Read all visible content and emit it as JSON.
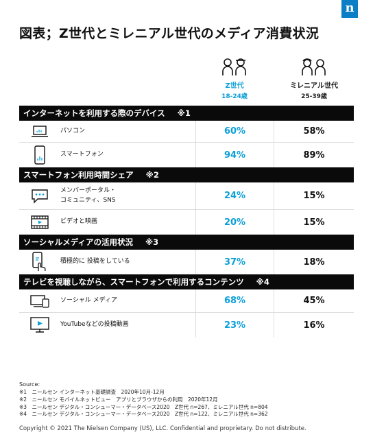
{
  "brand": {
    "logo_letter": "n",
    "logo_color": "#0a7fc6"
  },
  "title": "図表；Z世代とミレニアル世代のメディア消費状況",
  "columns": {
    "z": {
      "name": "Z世代",
      "ages": "18-24歳",
      "color": "#0a9fd8"
    },
    "millennial": {
      "name": "ミレニアル世代",
      "ages": "25-39歳",
      "color": "#1a1a1a"
    }
  },
  "sections": [
    {
      "title": "インターネットを利用する際のデバイス",
      "note": "※1",
      "rows": [
        {
          "icon": "laptop-icon",
          "label": "パソコン",
          "z": "60%",
          "m": "58%"
        },
        {
          "icon": "smartphone-icon",
          "label": "スマートフォン",
          "z": "94%",
          "m": "89%"
        }
      ]
    },
    {
      "title": "スマートフォン利用時間シェア",
      "note": "※2",
      "rows": [
        {
          "icon": "chat-bubble-icon",
          "label": "メンバーポータル・",
          "label2": "コミュニティ、SNS",
          "z": "24%",
          "m": "15%"
        },
        {
          "icon": "film-strip-icon",
          "label": "ビデオと映画",
          "z": "20%",
          "m": "15%"
        }
      ]
    },
    {
      "title": "ソーシャルメディアの活用状況",
      "note": "※3",
      "rows": [
        {
          "icon": "touch-phone-icon",
          "label": "積極的に 投稿をしている",
          "z": "37%",
          "m": "18%"
        }
      ]
    },
    {
      "title": "テレビを視聴しながら、スマートフォンで利用するコンテンツ",
      "note": "※4",
      "rows": [
        {
          "icon": "devices-icon",
          "label": "ソーシャル メディア",
          "z": "68%",
          "m": "45%"
        },
        {
          "icon": "tv-play-icon",
          "label": "YouTubeなどの投稿動画",
          "z": "23%",
          "m": "16%"
        }
      ]
    }
  ],
  "source": {
    "title": "Source:",
    "notes": [
      "※1　ニールセン インターネット基礎調査　2020年10月-12月",
      "※2　ニールセン モバイルネットビュー　アプリとブラウザからの利用　2020年12月",
      "※3　ニールセン デジタル・コンシューマー・データベース2020　Z世代 n=267、ミレニアル世代 n=804",
      "※4　ニールセン デジタル・コンシューマー・データベース2020　Z世代 n=122、ミレニアル世代 n=362"
    ]
  },
  "footer": "Copyright © 2021 The Nielsen Company (US), LLC. Confidential and proprietary. Do not distribute."
}
